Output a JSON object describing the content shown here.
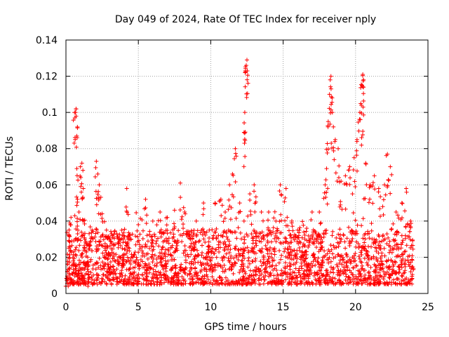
{
  "chart_data": {
    "type": "scatter",
    "title": "Day 049 of 2024, Rate Of TEC Index for receiver nply",
    "xlabel": "GPS time / hours",
    "ylabel": "ROTI / TECUs",
    "xlim": [
      0,
      25
    ],
    "ylim": [
      0,
      0.14
    ],
    "xticks": [
      0,
      5,
      10,
      15,
      20,
      25
    ],
    "xtick_labels": [
      "0",
      "5",
      "10",
      "15",
      "20",
      "25"
    ],
    "yticks": [
      0,
      0.02,
      0.04,
      0.06,
      0.08,
      0.1,
      0.12,
      0.14
    ],
    "ytick_labels": [
      "0",
      "0.02",
      "0.04",
      "0.06",
      "0.08",
      "0.1",
      "0.12",
      "0.14"
    ],
    "grid": true,
    "marker": "+",
    "color": "#ff0000",
    "series": [
      {
        "name": "ROTI",
        "points": [
          [
            0.1,
            0.012
          ],
          [
            0.2,
            0.025
          ],
          [
            0.3,
            0.038
          ],
          [
            0.35,
            0.042
          ],
          [
            0.5,
            0.018
          ],
          [
            0.62,
            0.097
          ],
          [
            0.66,
            0.1
          ],
          [
            0.7,
            0.102
          ],
          [
            0.75,
            0.069
          ],
          [
            0.8,
            0.052
          ],
          [
            0.9,
            0.045
          ],
          [
            1.0,
            0.07
          ],
          [
            1.1,
            0.072
          ],
          [
            1.2,
            0.058
          ],
          [
            1.3,
            0.03
          ],
          [
            1.5,
            0.02
          ],
          [
            1.8,
            0.035
          ],
          [
            2.1,
            0.073
          ],
          [
            2.2,
            0.066
          ],
          [
            2.3,
            0.06
          ],
          [
            2.5,
            0.044
          ],
          [
            2.8,
            0.035
          ],
          [
            3.0,
            0.03
          ],
          [
            3.3,
            0.022
          ],
          [
            3.6,
            0.028
          ],
          [
            4.0,
            0.032
          ],
          [
            4.2,
            0.058
          ],
          [
            4.5,
            0.03
          ],
          [
            5.0,
            0.038
          ],
          [
            5.5,
            0.052
          ],
          [
            6.0,
            0.04
          ],
          [
            6.5,
            0.045
          ],
          [
            7.0,
            0.042
          ],
          [
            7.5,
            0.046
          ],
          [
            7.9,
            0.061
          ],
          [
            8.2,
            0.045
          ],
          [
            8.6,
            0.03
          ],
          [
            9.0,
            0.04
          ],
          [
            9.5,
            0.05
          ],
          [
            9.9,
            0.035
          ],
          [
            10.3,
            0.05
          ],
          [
            10.7,
            0.052
          ],
          [
            11.0,
            0.045
          ],
          [
            11.3,
            0.06
          ],
          [
            11.5,
            0.066
          ],
          [
            11.7,
            0.08
          ],
          [
            12.0,
            0.05
          ],
          [
            12.3,
            0.089
          ],
          [
            12.35,
            0.1
          ],
          [
            12.4,
            0.123
          ],
          [
            12.45,
            0.126
          ],
          [
            12.5,
            0.129
          ],
          [
            12.7,
            0.055
          ],
          [
            13.0,
            0.06
          ],
          [
            13.5,
            0.045
          ],
          [
            14.0,
            0.045
          ],
          [
            14.5,
            0.04
          ],
          [
            14.8,
            0.06
          ],
          [
            15.2,
            0.058
          ],
          [
            15.6,
            0.04
          ],
          [
            16.0,
            0.035
          ],
          [
            16.5,
            0.03
          ],
          [
            17.0,
            0.045
          ],
          [
            17.5,
            0.045
          ],
          [
            17.9,
            0.06
          ],
          [
            18.0,
            0.069
          ],
          [
            18.1,
            0.092
          ],
          [
            18.2,
            0.11
          ],
          [
            18.25,
            0.118
          ],
          [
            18.3,
            0.12
          ],
          [
            18.4,
            0.1
          ],
          [
            18.6,
            0.085
          ],
          [
            18.8,
            0.08
          ],
          [
            19.0,
            0.062
          ],
          [
            19.3,
            0.065
          ],
          [
            19.6,
            0.07
          ],
          [
            19.9,
            0.075
          ],
          [
            20.1,
            0.085
          ],
          [
            20.3,
            0.1
          ],
          [
            20.4,
            0.104
          ],
          [
            20.45,
            0.115
          ],
          [
            20.5,
            0.121
          ],
          [
            20.55,
            0.118
          ],
          [
            20.7,
            0.072
          ],
          [
            21.0,
            0.06
          ],
          [
            21.3,
            0.065
          ],
          [
            21.6,
            0.058
          ],
          [
            22.0,
            0.06
          ],
          [
            22.2,
            0.077
          ],
          [
            22.4,
            0.07
          ],
          [
            22.8,
            0.045
          ],
          [
            23.2,
            0.05
          ],
          [
            23.5,
            0.058
          ],
          [
            23.8,
            0.04
          ]
        ]
      }
    ],
    "noise_band": {
      "description": "dense background scatter of ROTI samples across the full day",
      "y_typical_min": 0.005,
      "y_typical_max": 0.035
    }
  }
}
